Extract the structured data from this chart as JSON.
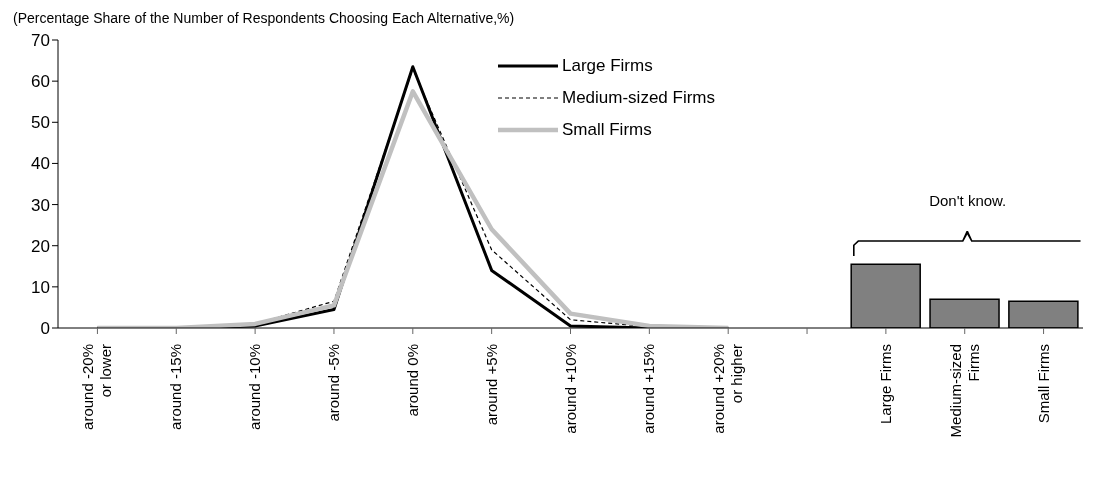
{
  "chart_data": {
    "type": "line",
    "ylabel": "(Percentage Share of the Number of Respondents Choosing Each Alternative,%)",
    "categories": [
      "around -20% or lower",
      "around -15%",
      "around -10%",
      "around -5%",
      "around 0%",
      "around +5%",
      "around +10%",
      "around +15%",
      "around +20% or higher",
      null,
      "Large Firms",
      "Medium-sized Firms",
      "Small Firms"
    ],
    "series": [
      {
        "type": "bar",
        "color": "#808080",
        "values": [
          null,
          null,
          null,
          null,
          null,
          null,
          null,
          null,
          null,
          null,
          15.5,
          7,
          6.5
        ]
      },
      {
        "name": "Large Firms",
        "color": "#000000",
        "line_style": "solid",
        "values": [
          0,
          0,
          0.5,
          4.5,
          63.5,
          14,
          0.5,
          0,
          0,
          null,
          null,
          null,
          null
        ]
      },
      {
        "name": "Medium-sized Firms",
        "color": "#000000",
        "line_style": "dashed",
        "values": [
          0,
          0,
          1,
          6.5,
          63,
          19,
          2,
          0.3,
          0,
          null,
          null,
          null,
          null
        ]
      },
      {
        "name": "Small Firms",
        "color": "#c0c0c0",
        "line_style": "solid",
        "values": [
          0,
          0,
          1,
          5.5,
          57.5,
          24,
          3.5,
          0.5,
          0,
          null,
          null,
          null,
          null
        ]
      }
    ],
    "ylim": [
      0,
      70
    ],
    "yticks": [
      0,
      10,
      20,
      30,
      40,
      50,
      60,
      70
    ],
    "legend": "top",
    "marker": "none",
    "annotations": [
      "Don't know."
    ]
  }
}
